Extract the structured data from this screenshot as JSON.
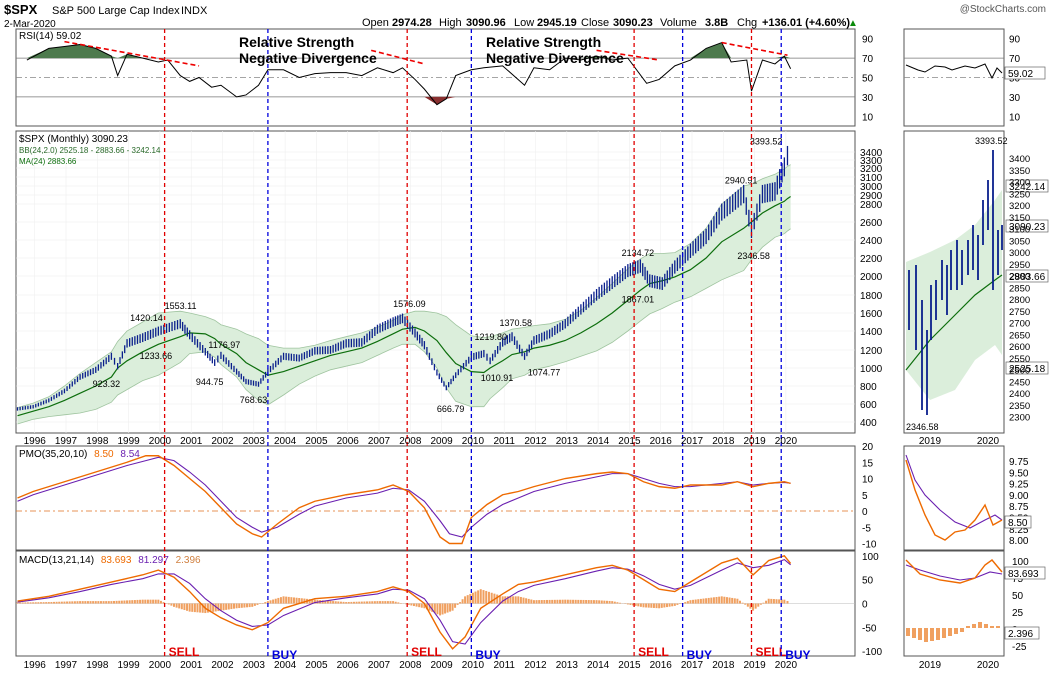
{
  "header": {
    "symbol": "$SPX",
    "name": "S&P 500 Large Cap Index",
    "exchange": "INDX",
    "date": "2-Mar-2020",
    "open_label": "Open",
    "open": "2974.28",
    "high_label": "High",
    "high": "3090.96",
    "low_label": "Low",
    "low": "2945.19",
    "close_label": "Close",
    "close": "3090.23",
    "volume_label": "Volume",
    "volume": "3.8B",
    "chg_label": "Chg",
    "chg": "+136.01 (+4.60%)",
    "chg_arrow": "▲",
    "credit": "@StockCharts.com"
  },
  "colors": {
    "price_bar": "#0a1f8c",
    "ma": "#0d6e0d",
    "band_fill": "#dbeedb",
    "band_line": "#9fc49f",
    "sell": "#e00000",
    "buy": "#0000dd",
    "divergence": "#ee0000",
    "pmo": "#ee6a00",
    "pmo_signal": "#6a1fb0",
    "rsi_up": "#4d7a4d",
    "rsi_down": "#8a3030",
    "histogram": "#f0a060"
  },
  "annotations": {
    "divergence_1_line1": "Relative Strength",
    "divergence_1_line2": "Negative Divergence",
    "divergence_2_line1": "Relative Strength",
    "divergence_2_line2": "Negative Divergence"
  },
  "chart_data": [
    {
      "panel": "rsi",
      "type": "line",
      "legend": "RSI(14) 59.02",
      "current": "59.02",
      "yticks": [
        "90",
        "70",
        "50",
        "30",
        "10"
      ],
      "ylim": [
        0,
        100
      ],
      "x": [
        1995.8,
        1996.5,
        1997.0,
        1997.5,
        1998.0,
        1998.5,
        1998.7,
        1999.0,
        1999.5,
        2000.0,
        2000.3,
        2000.7,
        2001.0,
        2001.3,
        2001.7,
        2002.0,
        2002.5,
        2002.8,
        2003.2,
        2003.5,
        2004.0,
        2004.5,
        2005.0,
        2005.5,
        2006.0,
        2006.5,
        2007.0,
        2007.5,
        2007.8,
        2008.2,
        2008.5,
        2008.9,
        2009.2,
        2009.5,
        2010.0,
        2010.4,
        2011.0,
        2011.7,
        2012.0,
        2012.5,
        2013.0,
        2013.5,
        2014.0,
        2014.5,
        2015.0,
        2015.6,
        2016.0,
        2016.5,
        2017.0,
        2017.5,
        2018.0,
        2018.3,
        2018.8,
        2018.95,
        2019.3,
        2019.7,
        2020.0,
        2020.2
      ],
      "values": [
        68,
        80,
        82,
        84,
        80,
        72,
        52,
        74,
        70,
        66,
        68,
        52,
        46,
        50,
        40,
        42,
        30,
        32,
        42,
        58,
        58,
        50,
        54,
        55,
        55,
        52,
        60,
        55,
        60,
        48,
        38,
        22,
        28,
        52,
        58,
        60,
        62,
        42,
        60,
        58,
        70,
        68,
        72,
        68,
        70,
        44,
        48,
        62,
        68,
        80,
        86,
        66,
        68,
        36,
        68,
        64,
        72,
        59
      ]
    },
    {
      "panel": "price",
      "type": "line",
      "legend": "$SPX (Monthly) 3090.23",
      "legend_bb": "BB(24,2.0) 2525.18 - 2883.66 - 3242.14",
      "legend_ma": "MA(24) 2883.66",
      "yticks": [
        "3400",
        "3300",
        "3200",
        "3100",
        "3000",
        "2900",
        "2800",
        "2600",
        "2400",
        "2200",
        "2000",
        "1800",
        "1600",
        "1400",
        "1200",
        "1000",
        "800",
        "600",
        "400"
      ],
      "x": [
        1995.5,
        1996.0,
        1996.5,
        1997.0,
        1997.5,
        1998.0,
        1998.5,
        1998.7,
        1999.0,
        1999.5,
        2000.0,
        2000.7,
        2001.0,
        2001.5,
        2001.8,
        2002.0,
        2002.5,
        2002.8,
        2003.2,
        2003.5,
        2004.0,
        2004.5,
        2005.0,
        2005.5,
        2006.0,
        2006.5,
        2007.0,
        2007.5,
        2007.8,
        2008.2,
        2008.5,
        2008.9,
        2009.2,
        2009.5,
        2010.0,
        2010.4,
        2010.6,
        2011.0,
        2011.3,
        2011.7,
        2012.0,
        2012.5,
        2013.0,
        2013.5,
        2014.0,
        2014.5,
        2015.0,
        2015.4,
        2015.7,
        2016.1,
        2016.5,
        2017.0,
        2017.5,
        2018.0,
        2018.7,
        2018.95,
        2019.3,
        2019.7,
        2020.0,
        2020.1,
        2020.2
      ],
      "values": [
        545,
        570,
        640,
        745,
        900,
        980,
        1130,
        1020,
        1270,
        1330,
        1400,
        1480,
        1360,
        1180,
        1060,
        1140,
        960,
        850,
        820,
        960,
        1130,
        1110,
        1190,
        1200,
        1270,
        1280,
        1420,
        1500,
        1540,
        1380,
        1250,
        950,
        780,
        920,
        1120,
        1160,
        1080,
        1280,
        1340,
        1130,
        1300,
        1370,
        1480,
        1640,
        1800,
        1930,
        2060,
        2110,
        1950,
        1920,
        2100,
        2280,
        2440,
        2710,
        2910,
        2510,
        2910,
        2940,
        3220,
        3350,
        3090
      ],
      "ma_values": [
        470,
        520,
        570,
        640,
        720,
        800,
        900,
        1000,
        1080,
        1180,
        1260,
        1340,
        1380,
        1370,
        1320,
        1260,
        1160,
        1060,
        980,
        920,
        960,
        1020,
        1080,
        1140,
        1180,
        1220,
        1290,
        1370,
        1420,
        1440,
        1400,
        1300,
        1170,
        1050,
        960,
        950,
        1000,
        1080,
        1150,
        1180,
        1220,
        1250,
        1300,
        1380,
        1480,
        1600,
        1740,
        1850,
        1920,
        1950,
        1990,
        2070,
        2200,
        2380,
        2530,
        2600,
        2700,
        2780,
        2830,
        2860,
        2883
      ],
      "band_upper": [
        560,
        610,
        680,
        800,
        940,
        1060,
        1180,
        1290,
        1400,
        1500,
        1600,
        1620,
        1600,
        1560,
        1520,
        1470,
        1420,
        1370,
        1320,
        1250,
        1220,
        1220,
        1250,
        1300,
        1340,
        1380,
        1440,
        1520,
        1580,
        1620,
        1620,
        1600,
        1560,
        1470,
        1350,
        1330,
        1340,
        1380,
        1420,
        1440,
        1460,
        1480,
        1530,
        1630,
        1770,
        1920,
        2080,
        2190,
        2250,
        2250,
        2260,
        2360,
        2530,
        2800,
        3000,
        3020,
        3080,
        3130,
        3190,
        3220,
        3242
      ],
      "band_lower": [
        380,
        430,
        460,
        480,
        500,
        540,
        620,
        700,
        760,
        860,
        920,
        1060,
        1160,
        1180,
        1120,
        1040,
        900,
        760,
        640,
        590,
        700,
        820,
        910,
        980,
        1020,
        1060,
        1140,
        1220,
        1260,
        1260,
        1180,
        1000,
        780,
        630,
        570,
        570,
        660,
        780,
        880,
        920,
        980,
        1020,
        1070,
        1130,
        1190,
        1280,
        1400,
        1510,
        1590,
        1650,
        1720,
        1780,
        1870,
        1960,
        2060,
        2180,
        2320,
        2430,
        2470,
        2500,
        2525
      ],
      "labels": [
        "1553.11",
        "1420.14",
        "1233.66",
        "923.32",
        "1176.97",
        "944.75",
        "768.63",
        "1576.09",
        "666.79",
        "1219.80",
        "1010.91",
        "1370.58",
        "1074.77",
        "2134.72",
        "1867.01",
        "2940.91",
        "2346.58",
        "3393.52"
      ],
      "right_labels": [
        "3242.14",
        "3090.23",
        "2883.66",
        "2525.18"
      ]
    },
    {
      "panel": "pmo",
      "type": "line",
      "legend_prefix": "PMO(35,20,10)",
      "legend_v1": "8.50",
      "legend_v2": "8.54",
      "yticks": [
        "20",
        "15",
        "10",
        "5",
        "0",
        "-5",
        "-10"
      ],
      "ylim": [
        -12,
        20
      ],
      "x": [
        1995.5,
        1996.0,
        1997.0,
        1998.0,
        1999.0,
        1999.6,
        2000.0,
        2000.5,
        2001.0,
        2001.5,
        2002.0,
        2002.5,
        2003.0,
        2003.3,
        2003.8,
        2004.5,
        2005.0,
        2006.0,
        2007.0,
        2007.5,
        2008.0,
        2008.5,
        2009.0,
        2009.3,
        2009.7,
        2010.0,
        2010.5,
        2011.0,
        2011.5,
        2012.0,
        2013.0,
        2014.0,
        2014.5,
        2015.0,
        2015.5,
        2016.0,
        2016.5,
        2017.0,
        2018.0,
        2018.5,
        2019.0,
        2019.5,
        2020.0,
        2020.2
      ],
      "values": [
        4,
        6,
        9,
        12,
        15,
        17,
        17,
        14,
        10,
        6,
        1,
        -4,
        -7,
        -8,
        -4,
        1,
        3,
        5,
        6.5,
        8,
        6,
        1,
        -8,
        -10,
        -10,
        -2,
        2,
        5,
        6,
        7.5,
        10,
        11.5,
        12,
        11.5,
        9,
        7.5,
        7,
        8,
        8,
        9,
        7.5,
        8.5,
        9,
        8.5
      ],
      "signal": [
        3,
        5,
        8,
        11,
        14,
        15.5,
        16.5,
        15.5,
        12,
        8,
        3,
        -2,
        -5,
        -6.5,
        -5,
        -1,
        1.5,
        4,
        5.5,
        7,
        6.5,
        3,
        -3,
        -7,
        -8,
        -5,
        -1,
        2,
        4,
        6,
        8.5,
        10.5,
        11.5,
        11.5,
        10,
        8.5,
        7.5,
        7.5,
        8.5,
        9,
        8,
        8.5,
        8.8,
        8.54
      ]
    },
    {
      "panel": "macd",
      "type": "line",
      "legend_prefix": "MACD(13,21,14)",
      "legend_v1": "83.693",
      "legend_v2": "81.297",
      "legend_v3": "2.396",
      "yticks": [
        "100",
        "50",
        "0",
        "-50",
        "-100"
      ],
      "ylim": [
        -110,
        110
      ],
      "x": [
        1995.5,
        1996.5,
        1997.5,
        1998.5,
        1999.5,
        2000.0,
        2000.5,
        2001.0,
        2001.5,
        2002.0,
        2002.5,
        2003.0,
        2003.5,
        2004.0,
        2005.0,
        2006.0,
        2007.0,
        2007.5,
        2008.0,
        2008.5,
        2009.0,
        2009.4,
        2009.8,
        2010.3,
        2011.0,
        2011.5,
        2012.0,
        2013.0,
        2014.0,
        2014.5,
        2015.0,
        2015.5,
        2016.0,
        2016.5,
        2017.0,
        2018.0,
        2018.5,
        2019.0,
        2019.5,
        2020.0,
        2020.2
      ],
      "values": [
        5,
        15,
        30,
        45,
        60,
        70,
        55,
        25,
        -10,
        -30,
        -45,
        -55,
        -40,
        -10,
        10,
        15,
        25,
        35,
        25,
        0,
        -60,
        -95,
        -70,
        -10,
        20,
        40,
        45,
        60,
        75,
        80,
        70,
        50,
        30,
        25,
        45,
        85,
        95,
        60,
        90,
        100,
        84
      ],
      "signal": [
        3,
        12,
        25,
        40,
        52,
        62,
        62,
        42,
        10,
        -15,
        -35,
        -48,
        -45,
        -25,
        2,
        12,
        20,
        30,
        28,
        10,
        -35,
        -80,
        -85,
        -40,
        5,
        25,
        38,
        52,
        68,
        75,
        72,
        58,
        40,
        30,
        38,
        70,
        85,
        75,
        80,
        92,
        81
      ],
      "histogram": [
        2,
        3,
        5,
        5,
        8,
        8,
        -7,
        -17,
        -20,
        -15,
        -10,
        -7,
        5,
        15,
        8,
        3,
        5,
        5,
        -3,
        -10,
        -25,
        -15,
        15,
        30,
        15,
        15,
        7,
        8,
        7,
        5,
        -2,
        -8,
        -10,
        -5,
        7,
        15,
        10,
        -15,
        10,
        8,
        2.4
      ]
    },
    {
      "panel": "signals",
      "type": "table",
      "sell_x": [
        2000.2,
        2007.95,
        2015.2,
        2018.95
      ],
      "buy_x": [
        2003.5,
        2010.0,
        2016.75,
        2019.9
      ],
      "sell_label": "SELL",
      "buy_label": "BUY",
      "divergence_1": [
        [
          1997.0,
          2001.3
        ]
      ],
      "divergence_2": [
        [
          2006.8,
          2008.5
        ],
        [
          2014.0,
          2016.0
        ],
        [
          2018.0,
          2020.0
        ]
      ]
    },
    {
      "panel": "x_axis",
      "type": "table",
      "years": [
        "1996",
        "1997",
        "1998",
        "1999",
        "2000",
        "2001",
        "2002",
        "2003",
        "2004",
        "2005",
        "2006",
        "2007",
        "2008",
        "2009",
        "2010",
        "2011",
        "2012",
        "2013",
        "2014",
        "2015",
        "2016",
        "2017",
        "2018",
        "2019",
        "2020"
      ],
      "zoom_years": [
        "2019",
        "2020"
      ]
    },
    {
      "panel": "zoom",
      "type": "line",
      "rsi_yticks": [
        "90",
        "70",
        "50",
        "30",
        "10"
      ],
      "rsi_current": "59.02",
      "price_yticks": [
        "3400",
        "3350",
        "3300",
        "3250",
        "3200",
        "3150",
        "3100",
        "3050",
        "3000",
        "2950",
        "2900",
        "2850",
        "2800",
        "2750",
        "2700",
        "2650",
        "2600",
        "2550",
        "2500",
        "2450",
        "2400",
        "2350",
        "2300"
      ],
      "price_labels": [
        "3393.52",
        "2346.58"
      ],
      "price_right_labels": [
        "3242.14",
        "3090.23",
        "2883.66",
        "2525.18"
      ],
      "pmo_yticks": [
        "9.75",
        "9.50",
        "9.25",
        "9.00",
        "8.75",
        "8.50",
        "8.25",
        "8.00"
      ],
      "pmo_current": "8.50",
      "macd_yticks": [
        "100",
        "75",
        "50",
        "25",
        "0",
        "-25"
      ],
      "macd_current": "83.693",
      "hist_current": "2.396"
    }
  ]
}
